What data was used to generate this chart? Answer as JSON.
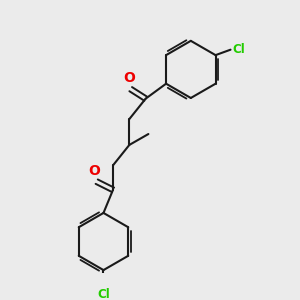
{
  "background_color": "#ebebeb",
  "line_color": "#1a1a1a",
  "oxygen_color": "#ee0000",
  "chlorine_color": "#22cc00",
  "lw": 1.5,
  "fig_size": [
    3.0,
    3.0
  ],
  "dpi": 100,
  "xlim": [
    0,
    10
  ],
  "ylim": [
    0,
    10
  ]
}
